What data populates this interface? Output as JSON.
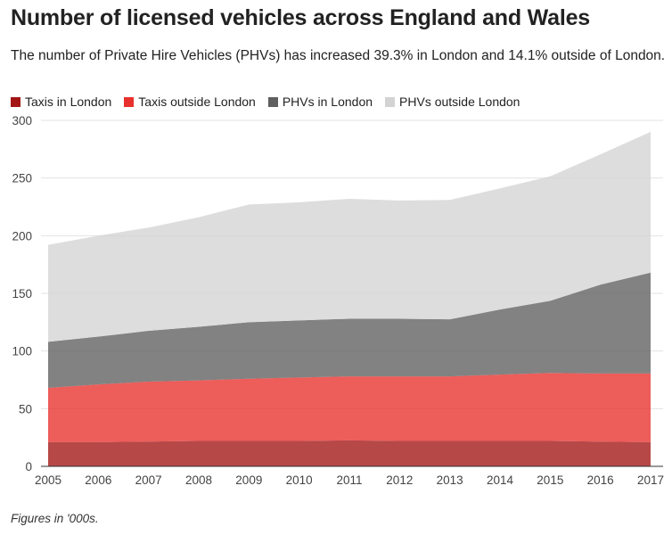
{
  "title": "Number of licensed vehicles across England and Wales",
  "subtitle": "The number of Private Hire Vehicles (PHVs) has increased 39.3% in London and 14.1% outside of London.",
  "footnote": "Figures in '000s.",
  "chart_data": {
    "type": "area",
    "stacked": true,
    "x": [
      2005,
      2006,
      2007,
      2008,
      2009,
      2010,
      2011,
      2012,
      2013,
      2014,
      2015,
      2016,
      2017
    ],
    "ylim": [
      0,
      300
    ],
    "yticks": [
      0,
      50,
      100,
      150,
      200,
      250,
      300
    ],
    "grid": true,
    "legend_position": "top-left",
    "series": [
      {
        "name": "Taxis in London",
        "color": "#a31515",
        "values": [
          21,
          21,
          21.5,
          22,
          22,
          22,
          22.5,
          22,
          22,
          22,
          22,
          21.5,
          21
        ]
      },
      {
        "name": "Taxis outside London",
        "color": "#e8302c",
        "values": [
          47,
          50,
          52,
          52.5,
          54,
          55,
          55.5,
          56,
          56,
          57.5,
          59,
          59,
          59.5
        ]
      },
      {
        "name": "PHVs in London",
        "color": "#5f5f5f",
        "values": [
          40,
          41.5,
          44,
          46.5,
          49,
          49.5,
          50,
          50,
          49.5,
          56.5,
          62.5,
          77,
          87.5
        ]
      },
      {
        "name": "PHVs outside London",
        "color": "#d3d3d3",
        "values": [
          84,
          87.5,
          89.5,
          95,
          102,
          102.5,
          104,
          102.5,
          103.5,
          105,
          108,
          113,
          122
        ]
      }
    ]
  }
}
